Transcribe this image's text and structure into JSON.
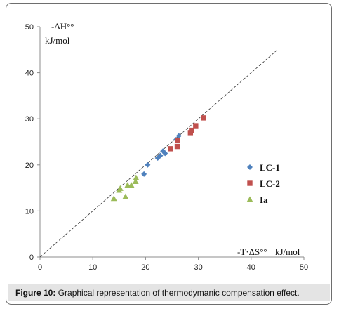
{
  "chart_data": {
    "type": "scatter",
    "title": "",
    "xlabel": "-T·ΔS°°",
    "xlabel_unit": "kJ/mol",
    "ylabel": "-ΔH°°",
    "ylabel_unit": "kJ/mol",
    "xlim": [
      0,
      50
    ],
    "ylim": [
      0,
      50
    ],
    "xticks": [
      "0",
      "10",
      "20",
      "30",
      "40",
      "50"
    ],
    "yticks": [
      "0",
      "10",
      "20",
      "30",
      "40",
      "50"
    ],
    "grid": false,
    "legend_position": "right",
    "reference_line": {
      "style": "dashed",
      "x": [
        0,
        45
      ],
      "y": [
        0,
        45
      ]
    },
    "series": [
      {
        "name": "LC-1",
        "marker": "diamond",
        "color": "#4f81bd",
        "x": [
          19.7,
          20.4,
          22.3,
          22.8,
          23.3,
          23.7,
          25.8,
          26.3
        ],
        "y": [
          18.0,
          20.0,
          21.5,
          22.0,
          23.0,
          22.5,
          25.5,
          26.3
        ]
      },
      {
        "name": "LC-2",
        "marker": "square",
        "color": "#c0504d",
        "x": [
          24.7,
          26.0,
          26.1,
          28.5,
          28.7,
          29.5,
          31.0
        ],
        "y": [
          23.5,
          24.0,
          25.3,
          27.0,
          27.5,
          28.5,
          30.2
        ]
      },
      {
        "name": "Ia",
        "marker": "triangle",
        "color": "#9bbb59",
        "x": [
          14.0,
          15.0,
          15.2,
          16.2,
          16.6,
          17.3,
          18.1,
          18.2
        ],
        "y": [
          12.7,
          14.5,
          14.9,
          13.1,
          15.6,
          15.6,
          16.4,
          17.2
        ]
      }
    ]
  },
  "caption": {
    "label": "Figure 10:",
    "text": " Graphical representation of thermodymanic compensation effect."
  }
}
